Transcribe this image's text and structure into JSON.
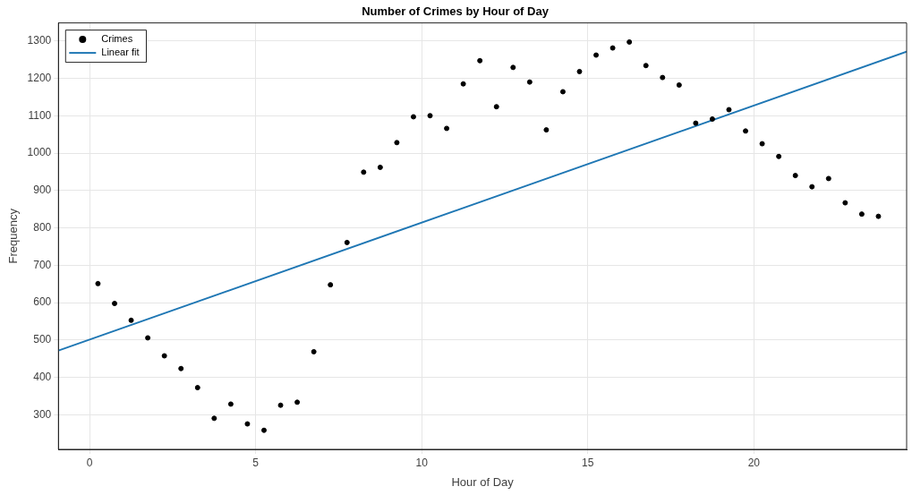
{
  "chart_data": {
    "type": "scatter",
    "title": "Number of Crimes by Hour of Day",
    "xlabel": "Hour of Day",
    "ylabel": "Frequency",
    "x": [
      0.25,
      0.75,
      1.25,
      1.75,
      2.25,
      2.75,
      3.25,
      3.75,
      4.25,
      4.75,
      5.25,
      5.75,
      6.25,
      6.75,
      7.25,
      7.75,
      8.25,
      8.75,
      9.25,
      9.75,
      10.25,
      10.75,
      11.25,
      11.75,
      12.25,
      12.75,
      13.25,
      13.75,
      14.25,
      14.75,
      15.25,
      15.75,
      16.25,
      16.75,
      17.25,
      17.75,
      18.25,
      18.75,
      19.25,
      19.75,
      20.25,
      20.75,
      21.25,
      21.75,
      22.25,
      22.75,
      23.25,
      23.75
    ],
    "series": [
      {
        "name": "Crimes",
        "color": "#000000",
        "marker": "circle",
        "values": [
          651,
          598,
          553,
          506,
          458,
          424,
          373,
          291,
          329,
          276,
          259,
          326,
          334,
          469,
          648,
          761,
          949,
          962,
          1028,
          1097,
          1100,
          1066,
          1185,
          1247,
          1124,
          1229,
          1190,
          1062,
          1164,
          1218,
          1262,
          1281,
          1297,
          1234,
          1202,
          1182,
          1080,
          1091,
          1116,
          1059,
          1025,
          991,
          940,
          910,
          932,
          867,
          837,
          831
        ]
      },
      {
        "name": "Linear fit",
        "type": "line",
        "color": "#1f77b4",
        "marker": "none",
        "line_style": "solid",
        "x": [
          -0.94,
          24.6
        ],
        "values": [
          472,
          1271
        ]
      }
    ],
    "xlim": [
      -0.94,
      24.6
    ],
    "xticks": [
      0,
      5,
      10,
      15,
      20
    ],
    "ylim": [
      208,
      1348
    ],
    "yticks": [
      300,
      400,
      500,
      600,
      700,
      800,
      900,
      1000,
      1100,
      1200,
      1300
    ],
    "grid": true,
    "legend": "top left"
  }
}
